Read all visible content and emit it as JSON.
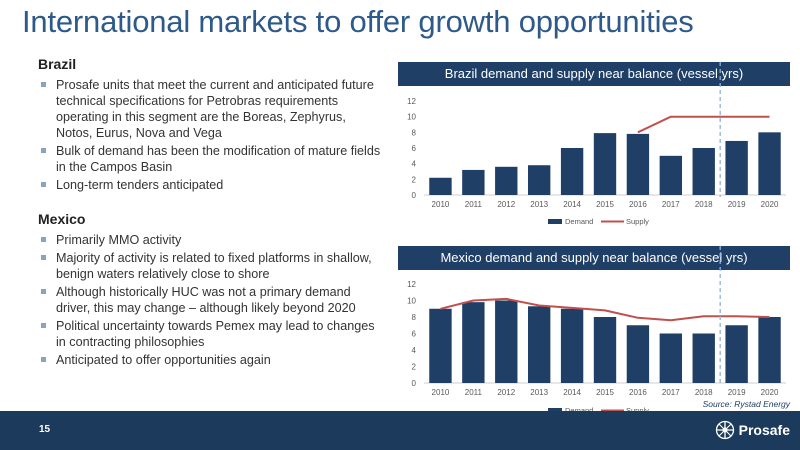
{
  "slide": {
    "title": "International markets to offer growth opportunities",
    "page_number": "15",
    "source": "Source: Rystad Energy",
    "logo_text": "Prosafe"
  },
  "brazil": {
    "heading": "Brazil",
    "bullets": [
      "Prosafe units that meet the current and anticipated future technical specifications for Petrobras requirements operating in this segment are the Boreas, Zephyrus, Notos, Eurus, Nova and Vega",
      "Bulk of demand has been the modification of mature fields in the Campos Basin",
      "Long-term tenders anticipated"
    ]
  },
  "mexico": {
    "heading": "Mexico",
    "bullets": [
      "Primarily MMO activity",
      "Majority of activity is related to fixed platforms in shallow, benign waters relatively close to shore",
      "Although historically HUC was not a primary demand driver, this may change – although likely beyond 2020",
      "Political uncertainty towards Pemex may lead to changes in contracting philosophies",
      "Anticipated to offer opportunities again"
    ]
  },
  "colors": {
    "bar": "#1f3f67",
    "line": "#c0504d",
    "banner": "#1f3f67",
    "divider": "#8fb3d6",
    "title": "#2d5a8a"
  },
  "chart_data": [
    {
      "type": "bar",
      "title": "Brazil demand and supply near balance (vessel yrs)",
      "categories": [
        "2010",
        "2011",
        "2012",
        "2013",
        "2014",
        "2015",
        "2016",
        "2017",
        "2018",
        "2019",
        "2020"
      ],
      "series": [
        {
          "name": "Demand",
          "type": "bar",
          "values": [
            2.2,
            3.2,
            3.6,
            3.8,
            6,
            7.9,
            7.8,
            5,
            6,
            6.9,
            8
          ]
        },
        {
          "name": "Supply",
          "type": "line",
          "values": [
            null,
            null,
            null,
            null,
            null,
            null,
            8,
            10,
            10,
            10,
            10
          ]
        }
      ],
      "ylim": [
        0,
        12
      ],
      "yticks": [
        0,
        2,
        4,
        6,
        8,
        10,
        12
      ],
      "divider_after": "2018",
      "legend": "bottom"
    },
    {
      "type": "bar",
      "title": "Mexico demand and supply near balance (vessel yrs)",
      "categories": [
        "2010",
        "2011",
        "2012",
        "2013",
        "2014",
        "2015",
        "2016",
        "2017",
        "2018",
        "2019",
        "2020"
      ],
      "series": [
        {
          "name": "Demand",
          "type": "bar",
          "values": [
            9,
            9.8,
            10,
            9.3,
            9,
            8,
            7,
            6,
            6,
            7,
            8
          ]
        },
        {
          "name": "Supply",
          "type": "line",
          "values": [
            9,
            10,
            10.2,
            9.4,
            9.1,
            8.8,
            7.9,
            7.6,
            8.1,
            8.1,
            8
          ]
        }
      ],
      "ylim": [
        0,
        12
      ],
      "yticks": [
        0,
        2,
        4,
        6,
        8,
        10,
        12
      ],
      "divider_after": "2018",
      "legend": "bottom"
    }
  ]
}
